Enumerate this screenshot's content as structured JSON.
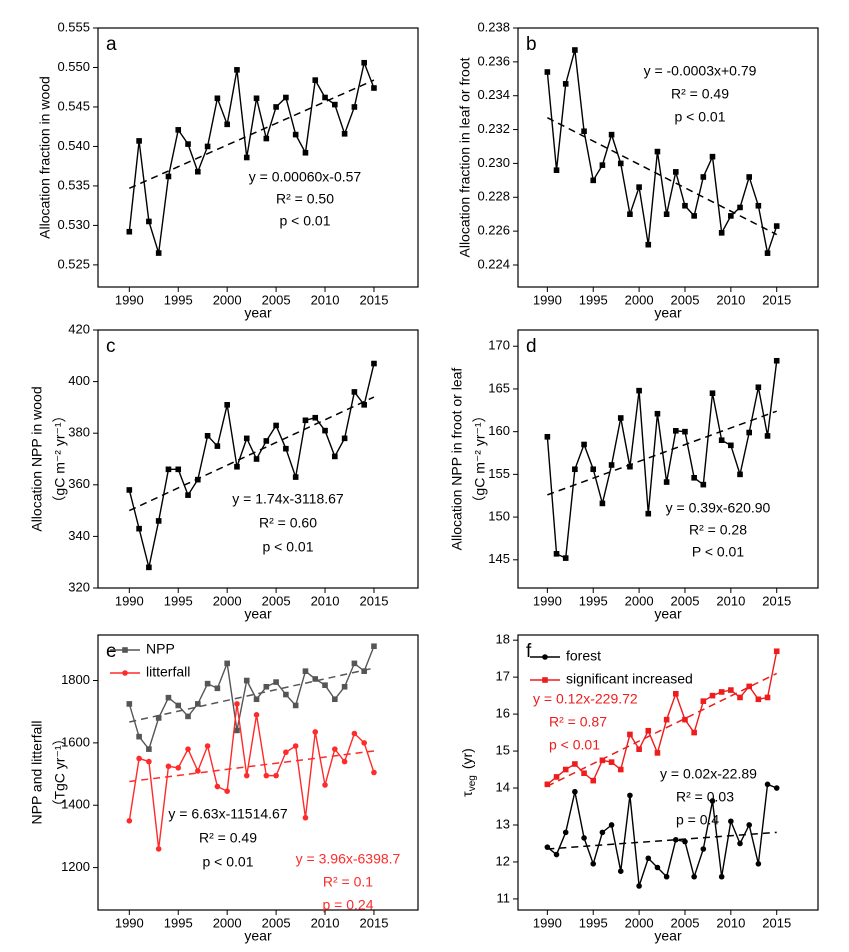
{
  "chart_data": [
    {
      "type": "line",
      "label": "a",
      "y_label": [
        "Allocation fraction in wood"
      ],
      "x_label": "year",
      "x": [
        1990,
        1991,
        1992,
        1993,
        1994,
        1995,
        1996,
        1997,
        1998,
        1999,
        2000,
        2001,
        2002,
        2003,
        2004,
        2005,
        2006,
        2007,
        2008,
        2009,
        2010,
        2011,
        2012,
        2013,
        2014,
        2015
      ],
      "xlim": [
        1986.8,
        2019.5
      ],
      "xticks": [
        1990,
        1995,
        2000,
        2005,
        2010,
        2015
      ],
      "ylim": [
        0.5222,
        0.555
      ],
      "yticks": [
        0.525,
        {
          "value": 0.53,
          "label": "0.530"
        },
        0.535,
        {
          "value": 0.54,
          "label": "0.540"
        },
        0.545,
        {
          "value": 0.55,
          "label": "0.550"
        },
        0.555
      ],
      "series": [
        {
          "color": "#000000",
          "marker": "square",
          "values": [
            0.5292,
            0.5407,
            0.5305,
            0.5265,
            0.5362,
            0.5421,
            0.5403,
            0.5368,
            0.54,
            0.5461,
            0.5428,
            0.5497,
            0.5386,
            0.5461,
            0.541,
            0.545,
            0.5462,
            0.5415,
            0.5392,
            0.5484,
            0.5462,
            0.5453,
            0.5416,
            0.545,
            0.5506,
            0.5474
          ],
          "trend": {
            "x": [
              1990,
              2015
            ],
            "y": [
              0.5347,
              0.5484
            ]
          }
        }
      ],
      "annotations": [
        {
          "color": "#000000",
          "lines": [
            "y = 0.00060x-0.57",
            "R² = 0.50",
            "p < 0.01"
          ]
        }
      ]
    },
    {
      "type": "line",
      "label": "b",
      "y_label": [
        "Allocation fraction in leaf or froot"
      ],
      "x_label": "year",
      "x": [
        1990,
        1991,
        1992,
        1993,
        1994,
        1995,
        1996,
        1997,
        1998,
        1999,
        2000,
        2001,
        2002,
        2003,
        2004,
        2005,
        2006,
        2007,
        2008,
        2009,
        2010,
        2011,
        2012,
        2013,
        2014,
        2015
      ],
      "xlim": [
        1986.8,
        2019.5
      ],
      "xticks": [
        1990,
        1995,
        2000,
        2005,
        2010,
        2015
      ],
      "ylim": [
        0.2227,
        0.238
      ],
      "yticks": [
        0.224,
        0.226,
        0.228,
        {
          "value": 0.23,
          "label": "0.230"
        },
        0.232,
        0.234,
        0.236,
        0.238
      ],
      "series": [
        {
          "color": "#000000",
          "marker": "square",
          "values": [
            0.2354,
            0.2296,
            0.2347,
            0.2367,
            0.2319,
            0.229,
            0.2299,
            0.2317,
            0.23,
            0.227,
            0.2286,
            0.2252,
            0.2307,
            0.227,
            0.2295,
            0.2275,
            0.2269,
            0.2292,
            0.2304,
            0.2259,
            0.2269,
            0.2274,
            0.2292,
            0.2275,
            0.2247,
            0.2263
          ],
          "trend": {
            "x": [
              1990,
              2015
            ],
            "y": [
              0.2327,
              0.2258
            ]
          }
        }
      ],
      "annotations": [
        {
          "color": "#000000",
          "lines": [
            "y = -0.0003x+0.79",
            "R² = 0.49",
            "p < 0.01"
          ]
        }
      ]
    },
    {
      "type": "line",
      "label": "c",
      "y_label": [
        "Allocation NPP in wood",
        "（gC m⁻² yr⁻¹）"
      ],
      "x_label": "year",
      "x": [
        1990,
        1991,
        1992,
        1993,
        1994,
        1995,
        1996,
        1997,
        1998,
        1999,
        2000,
        2001,
        2002,
        2003,
        2004,
        2005,
        2006,
        2007,
        2008,
        2009,
        2010,
        2011,
        2012,
        2013,
        2014,
        2015
      ],
      "xlim": [
        1986.8,
        2019.5
      ],
      "xticks": [
        1990,
        1995,
        2000,
        2005,
        2010,
        2015
      ],
      "ylim": [
        320,
        420
      ],
      "yticks": [
        320,
        340,
        360,
        380,
        400,
        420
      ],
      "series": [
        {
          "color": "#000000",
          "marker": "square",
          "values": [
            358,
            343,
            328,
            346,
            366,
            366,
            356,
            362,
            379,
            375,
            391,
            367,
            378,
            370,
            377,
            383,
            374,
            363,
            385,
            386,
            381,
            371,
            378,
            396,
            391,
            407
          ],
          "trend": {
            "x": [
              1990,
              2015
            ],
            "y": [
              350,
              394
            ]
          }
        }
      ],
      "annotations": [
        {
          "color": "#000000",
          "lines": [
            "y = 1.74x-3118.67",
            "R² = 0.60",
            "p < 0.01"
          ]
        }
      ]
    },
    {
      "type": "line",
      "label": "d",
      "y_label": [
        "Allocation NPP in froot or leaf",
        "（gC m⁻² yr⁻¹）"
      ],
      "x_label": "year",
      "x": [
        1990,
        1991,
        1992,
        1993,
        1994,
        1995,
        1996,
        1997,
        1998,
        1999,
        2000,
        2001,
        2002,
        2003,
        2004,
        2005,
        2006,
        2007,
        2008,
        2009,
        2010,
        2011,
        2012,
        2013,
        2014,
        2015
      ],
      "xlim": [
        1986.8,
        2019.5
      ],
      "xticks": [
        1990,
        1995,
        2000,
        2005,
        2010,
        2015
      ],
      "ylim": [
        141.7,
        171.9
      ],
      "yticks": [
        145,
        150,
        155,
        160,
        165,
        170
      ],
      "series": [
        {
          "color": "#000000",
          "marker": "square",
          "values": [
            159.4,
            145.7,
            145.2,
            155.6,
            158.5,
            155.6,
            151.6,
            156.1,
            161.6,
            155.9,
            164.8,
            150.4,
            162.1,
            154.1,
            160.1,
            160,
            154.6,
            153.8,
            164.5,
            159,
            158.4,
            155,
            159.9,
            165.2,
            159.5,
            168.3
          ],
          "trend": {
            "x": [
              1990,
              2015
            ],
            "y": [
              152.6,
              162.4
            ]
          }
        }
      ],
      "annotations": [
        {
          "color": "#000000",
          "lines": [
            "y = 0.39x-620.90",
            "R² = 0.28",
            "P < 0.01"
          ]
        }
      ]
    },
    {
      "type": "line",
      "label": "e",
      "y_label": [
        "NPP and litterfall",
        "（TgC yr⁻¹）"
      ],
      "x_label": "year",
      "x": [
        1990,
        1991,
        1992,
        1993,
        1994,
        1995,
        1996,
        1997,
        1998,
        1999,
        2000,
        2001,
        2002,
        2003,
        2004,
        2005,
        2006,
        2007,
        2008,
        2009,
        2010,
        2011,
        2012,
        2013,
        2014,
        2015
      ],
      "xlim": [
        1986.8,
        2019.5
      ],
      "xticks": [
        1990,
        1995,
        2000,
        2005,
        2010,
        2015
      ],
      "ylim": [
        1064,
        1946
      ],
      "yticks": [
        1200,
        1400,
        1600,
        1800
      ],
      "series": [
        {
          "name": "NPP",
          "color": "#555555",
          "marker": "square",
          "values": [
            1725,
            1620,
            1580,
            1680,
            1745,
            1720,
            1685,
            1725,
            1790,
            1775,
            1855,
            1640,
            1800,
            1740,
            1780,
            1795,
            1755,
            1720,
            1830,
            1805,
            1785,
            1740,
            1780,
            1855,
            1830,
            1910
          ],
          "trend": {
            "x": [
              1990,
              2015
            ],
            "y": [
              1667,
              1840
            ]
          }
        },
        {
          "name": "litterfall",
          "color": "#ff2a2a",
          "marker": "circle",
          "values": [
            1350,
            1550,
            1540,
            1260,
            1525,
            1520,
            1580,
            1510,
            1590,
            1460,
            1445,
            1725,
            1495,
            1690,
            1495,
            1495,
            1570,
            1590,
            1360,
            1635,
            1465,
            1580,
            1540,
            1630,
            1600,
            1505
          ],
          "trend": {
            "x": [
              1990,
              2015
            ],
            "y": [
              1476,
              1574
            ]
          }
        }
      ],
      "annotations": [
        {
          "color": "#000000",
          "lines": [
            "y = 6.63x-11514.67",
            "R² = 0.49",
            "p < 0.01"
          ]
        },
        {
          "color": "#ff2a2a",
          "lines": [
            "y = 3.96x-6398.7",
            "R² = 0.1",
            "p = 0.24"
          ]
        }
      ]
    },
    {
      "type": "line",
      "label": "f",
      "y_label": [
        "τ",
        "veg",
        "(yr)"
      ],
      "x_label": "year",
      "x": [
        1990,
        1991,
        1992,
        1993,
        1994,
        1995,
        1996,
        1997,
        1998,
        1999,
        2000,
        2001,
        2002,
        2003,
        2004,
        2005,
        2006,
        2007,
        2008,
        2009,
        2010,
        2011,
        2012,
        2013,
        2014,
        2015
      ],
      "xlim": [
        1986.8,
        2019.5
      ],
      "xticks": [
        1990,
        1995,
        2000,
        2005,
        2010,
        2015
      ],
      "ylim": [
        10.7,
        18.14
      ],
      "yticks": [
        11,
        12,
        13,
        14,
        15,
        16,
        17,
        18
      ],
      "series": [
        {
          "name": "forest",
          "color": "#000000",
          "marker": "circle",
          "values": [
            12.4,
            12.2,
            12.8,
            13.9,
            12.65,
            11.95,
            12.8,
            13,
            11.75,
            13.8,
            11.35,
            12.1,
            11.85,
            11.6,
            12.6,
            12.55,
            11.6,
            12.35,
            13.65,
            11.6,
            13.1,
            12.5,
            13,
            11.95,
            14.1,
            14
          ],
          "trend": {
            "x": [
              1990,
              2015
            ],
            "y": [
              12.35,
              12.8
            ]
          }
        },
        {
          "name": "significant increased",
          "color": "#ee1c1c",
          "marker": "square",
          "values": [
            14.1,
            14.3,
            14.5,
            14.65,
            14.4,
            14.2,
            14.75,
            14.7,
            14.5,
            15.45,
            15.05,
            15.55,
            14.95,
            15.85,
            16.55,
            15.85,
            15.5,
            16.35,
            16.5,
            16.6,
            16.65,
            16.45,
            16.75,
            16.4,
            16.45,
            17.7
          ],
          "trend": {
            "x": [
              1990,
              2015
            ],
            "y": [
              14.05,
              17.1
            ]
          }
        }
      ],
      "annotations": [
        {
          "color": "#000000",
          "lines": [
            "y = 0.02x-22.89",
            "R² = 0.03",
            "p = 0.4"
          ]
        },
        {
          "color": "#ee1c1c",
          "lines": [
            "y = 0.12x-229.72",
            "R² = 0.87",
            "p < 0.01"
          ]
        }
      ]
    }
  ]
}
